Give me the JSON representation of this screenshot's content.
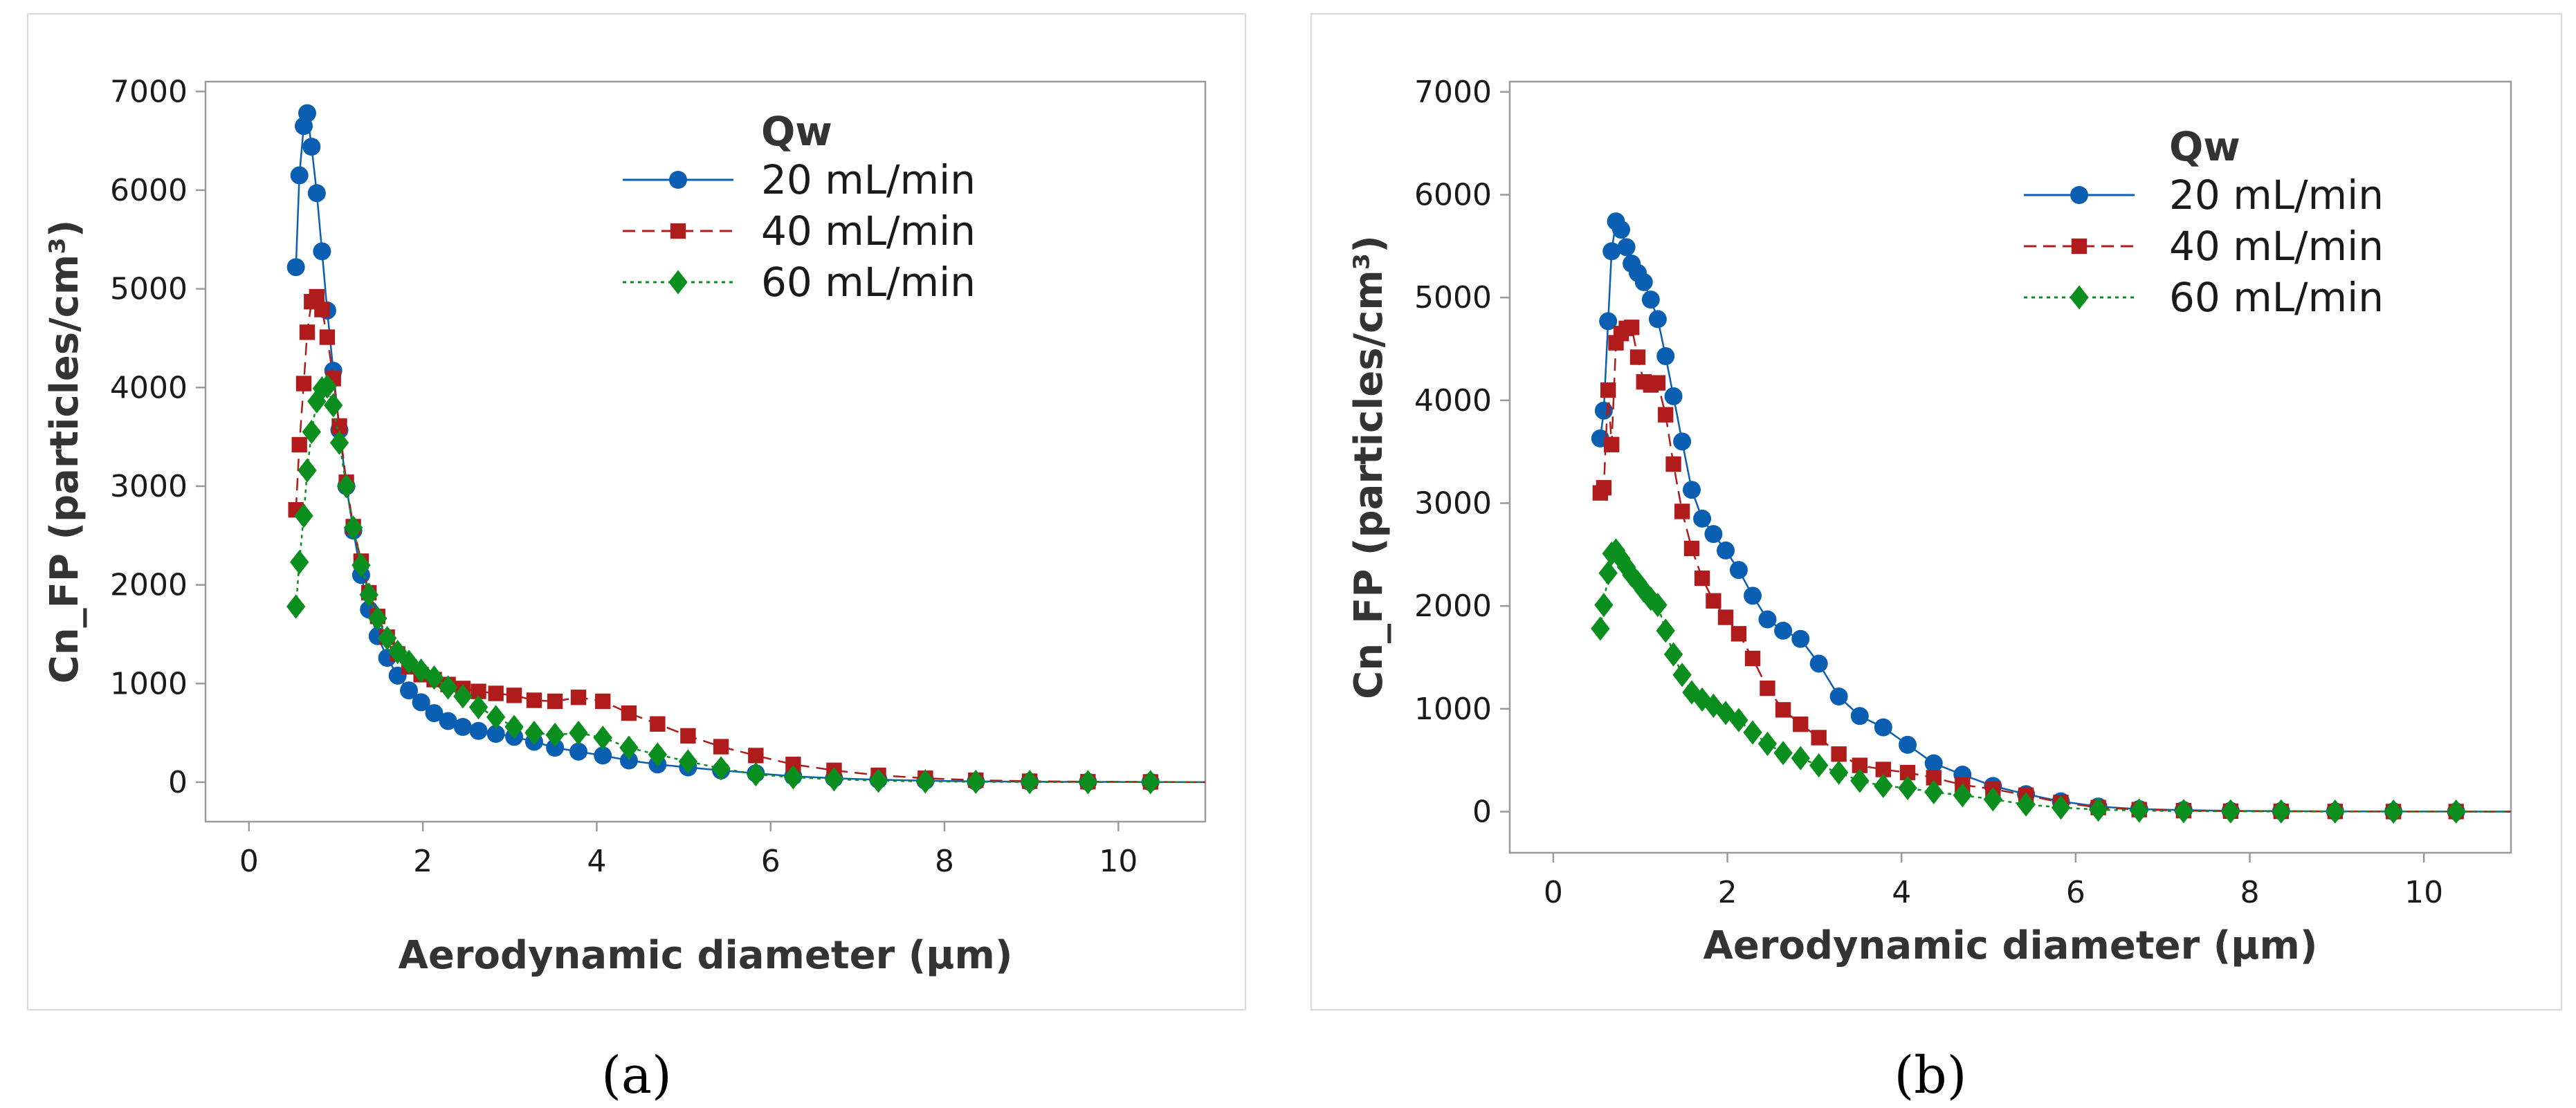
{
  "chart_data": [
    {
      "type": "line",
      "panel_label": "a",
      "caption": "(a)",
      "xlabel": "Aerodynamic diameter (μm)",
      "ylabel": "Cn_FP (particles/cm³)",
      "xlim": [
        -0.5,
        11
      ],
      "ylim": [
        -400,
        7100
      ],
      "xticks": [
        0,
        2,
        4,
        6,
        8,
        10
      ],
      "yticks": [
        0,
        1000,
        2000,
        3000,
        4000,
        5000,
        6000,
        7000
      ],
      "grid": false,
      "legend": {
        "title": "Qw",
        "position": "top-right"
      },
      "series": [
        {
          "name": "20 mL/min",
          "color": "#0b5fb3",
          "marker": "circle",
          "dash": "solid",
          "x": [
            0.54,
            0.58,
            0.63,
            0.67,
            0.72,
            0.78,
            0.84,
            0.9,
            0.97,
            1.04,
            1.12,
            1.2,
            1.29,
            1.38,
            1.48,
            1.59,
            1.71,
            1.84,
            1.98,
            2.13,
            2.29,
            2.46,
            2.64,
            2.84,
            3.05,
            3.28,
            3.52,
            3.79,
            4.07,
            4.37,
            4.7,
            5.05,
            5.43,
            5.83,
            6.26,
            6.73,
            7.24,
            7.78,
            8.36,
            8.98,
            9.65,
            10.37
          ],
          "y": [
            5220,
            6150,
            6650,
            6780,
            6440,
            5970,
            5380,
            4780,
            4170,
            3570,
            3000,
            2550,
            2100,
            1750,
            1480,
            1260,
            1080,
            930,
            810,
            700,
            620,
            560,
            520,
            490,
            460,
            410,
            350,
            310,
            270,
            220,
            180,
            150,
            120,
            90,
            60,
            40,
            25,
            15,
            8,
            5,
            3,
            2
          ]
        },
        {
          "name": "40 mL/min",
          "color": "#b01c1c",
          "marker": "square",
          "dash": "dashed",
          "x": [
            0.54,
            0.58,
            0.63,
            0.67,
            0.72,
            0.78,
            0.84,
            0.9,
            0.97,
            1.04,
            1.12,
            1.2,
            1.29,
            1.38,
            1.48,
            1.59,
            1.71,
            1.84,
            1.98,
            2.13,
            2.29,
            2.46,
            2.64,
            2.84,
            3.05,
            3.28,
            3.52,
            3.79,
            4.07,
            4.37,
            4.7,
            5.05,
            5.43,
            5.83,
            6.26,
            6.73,
            7.24,
            7.78,
            8.36,
            8.98,
            9.65,
            10.37
          ],
          "y": [
            2760,
            3420,
            4040,
            4560,
            4870,
            4920,
            4790,
            4510,
            4090,
            3610,
            3040,
            2590,
            2240,
            1920,
            1680,
            1470,
            1300,
            1170,
            1090,
            1040,
            990,
            950,
            920,
            900,
            880,
            830,
            820,
            860,
            820,
            700,
            590,
            470,
            360,
            270,
            180,
            120,
            70,
            40,
            20,
            10,
            5,
            3
          ]
        },
        {
          "name": "60 mL/min",
          "color": "#0a8f1e",
          "marker": "diamond",
          "dash": "dotted",
          "x": [
            0.54,
            0.58,
            0.63,
            0.67,
            0.72,
            0.78,
            0.84,
            0.9,
            0.97,
            1.04,
            1.12,
            1.2,
            1.29,
            1.38,
            1.48,
            1.59,
            1.71,
            1.84,
            1.98,
            2.13,
            2.29,
            2.46,
            2.64,
            2.84,
            3.05,
            3.28,
            3.52,
            3.79,
            4.07,
            4.37,
            4.7,
            5.05,
            5.43,
            5.83,
            6.26,
            6.73,
            7.24,
            7.78,
            8.36,
            8.98,
            9.65,
            10.37
          ],
          "y": [
            1780,
            2230,
            2700,
            3160,
            3550,
            3860,
            3990,
            4010,
            3820,
            3440,
            3000,
            2580,
            2200,
            1900,
            1660,
            1460,
            1320,
            1220,
            1130,
            1060,
            960,
            870,
            760,
            660,
            560,
            500,
            480,
            500,
            450,
            350,
            280,
            210,
            140,
            80,
            50,
            30,
            15,
            8,
            4,
            2,
            1,
            1
          ]
        }
      ]
    },
    {
      "type": "line",
      "panel_label": "b",
      "caption": "(b)",
      "xlabel": "Aerodynamic diameter (μm)",
      "ylabel": "Cn_FP (particles/cm³)",
      "xlim": [
        -0.5,
        11
      ],
      "ylim": [
        -400,
        7100
      ],
      "xticks": [
        0,
        2,
        4,
        6,
        8,
        10
      ],
      "yticks": [
        0,
        1000,
        2000,
        3000,
        4000,
        5000,
        6000,
        7000
      ],
      "grid": false,
      "legend": {
        "title": "Qw",
        "position": "top-right"
      },
      "series": [
        {
          "name": "20 mL/min",
          "color": "#0b5fb3",
          "marker": "circle",
          "dash": "solid",
          "x": [
            0.54,
            0.58,
            0.63,
            0.67,
            0.72,
            0.78,
            0.84,
            0.9,
            0.97,
            1.04,
            1.12,
            1.2,
            1.29,
            1.38,
            1.48,
            1.59,
            1.71,
            1.84,
            1.98,
            2.13,
            2.29,
            2.46,
            2.64,
            2.84,
            3.05,
            3.28,
            3.52,
            3.79,
            4.07,
            4.37,
            4.7,
            5.05,
            5.43,
            5.83,
            6.26,
            6.73,
            7.24,
            7.78,
            8.36,
            8.98,
            9.65,
            10.37
          ],
          "y": [
            3630,
            3900,
            4770,
            5450,
            5740,
            5660,
            5490,
            5330,
            5240,
            5150,
            4980,
            4790,
            4430,
            4040,
            3600,
            3130,
            2850,
            2700,
            2540,
            2350,
            2100,
            1870,
            1760,
            1680,
            1440,
            1120,
            930,
            820,
            650,
            470,
            360,
            250,
            170,
            100,
            50,
            25,
            15,
            8,
            5,
            3,
            2,
            1
          ]
        },
        {
          "name": "40 mL/min",
          "color": "#b01c1c",
          "marker": "square",
          "dash": "dashed",
          "x": [
            0.54,
            0.58,
            0.63,
            0.67,
            0.72,
            0.78,
            0.84,
            0.9,
            0.97,
            1.04,
            1.12,
            1.2,
            1.29,
            1.38,
            1.48,
            1.59,
            1.71,
            1.84,
            1.98,
            2.13,
            2.29,
            2.46,
            2.64,
            2.84,
            3.05,
            3.28,
            3.52,
            3.79,
            4.07,
            4.37,
            4.7,
            5.05,
            5.43,
            5.83,
            6.26,
            6.73,
            7.24,
            7.78,
            8.36,
            8.98,
            9.65,
            10.37
          ],
          "y": [
            3100,
            3150,
            4100,
            3570,
            4560,
            4650,
            4700,
            4710,
            4420,
            4180,
            4150,
            4170,
            3860,
            3380,
            2920,
            2560,
            2270,
            2050,
            1890,
            1730,
            1490,
            1200,
            990,
            850,
            720,
            560,
            450,
            410,
            380,
            330,
            260,
            220,
            160,
            90,
            40,
            20,
            10,
            5,
            3,
            2,
            1,
            1
          ]
        },
        {
          "name": "60 mL/min",
          "color": "#0a8f1e",
          "marker": "diamond",
          "dash": "dotted",
          "x": [
            0.54,
            0.58,
            0.63,
            0.67,
            0.72,
            0.78,
            0.84,
            0.9,
            0.97,
            1.04,
            1.12,
            1.2,
            1.29,
            1.38,
            1.48,
            1.59,
            1.71,
            1.84,
            1.98,
            2.13,
            2.29,
            2.46,
            2.64,
            2.84,
            3.05,
            3.28,
            3.52,
            3.79,
            4.07,
            4.37,
            4.7,
            5.05,
            5.43,
            5.83,
            6.26,
            6.73,
            7.24,
            7.78,
            8.36,
            8.98,
            9.65,
            10.37
          ],
          "y": [
            1780,
            2010,
            2320,
            2510,
            2540,
            2460,
            2380,
            2300,
            2230,
            2150,
            2070,
            2010,
            1760,
            1530,
            1330,
            1160,
            1090,
            1030,
            960,
            890,
            770,
            660,
            570,
            520,
            450,
            380,
            300,
            250,
            230,
            190,
            160,
            120,
            70,
            40,
            20,
            10,
            5,
            3,
            2,
            1,
            1,
            1
          ]
        }
      ]
    }
  ]
}
